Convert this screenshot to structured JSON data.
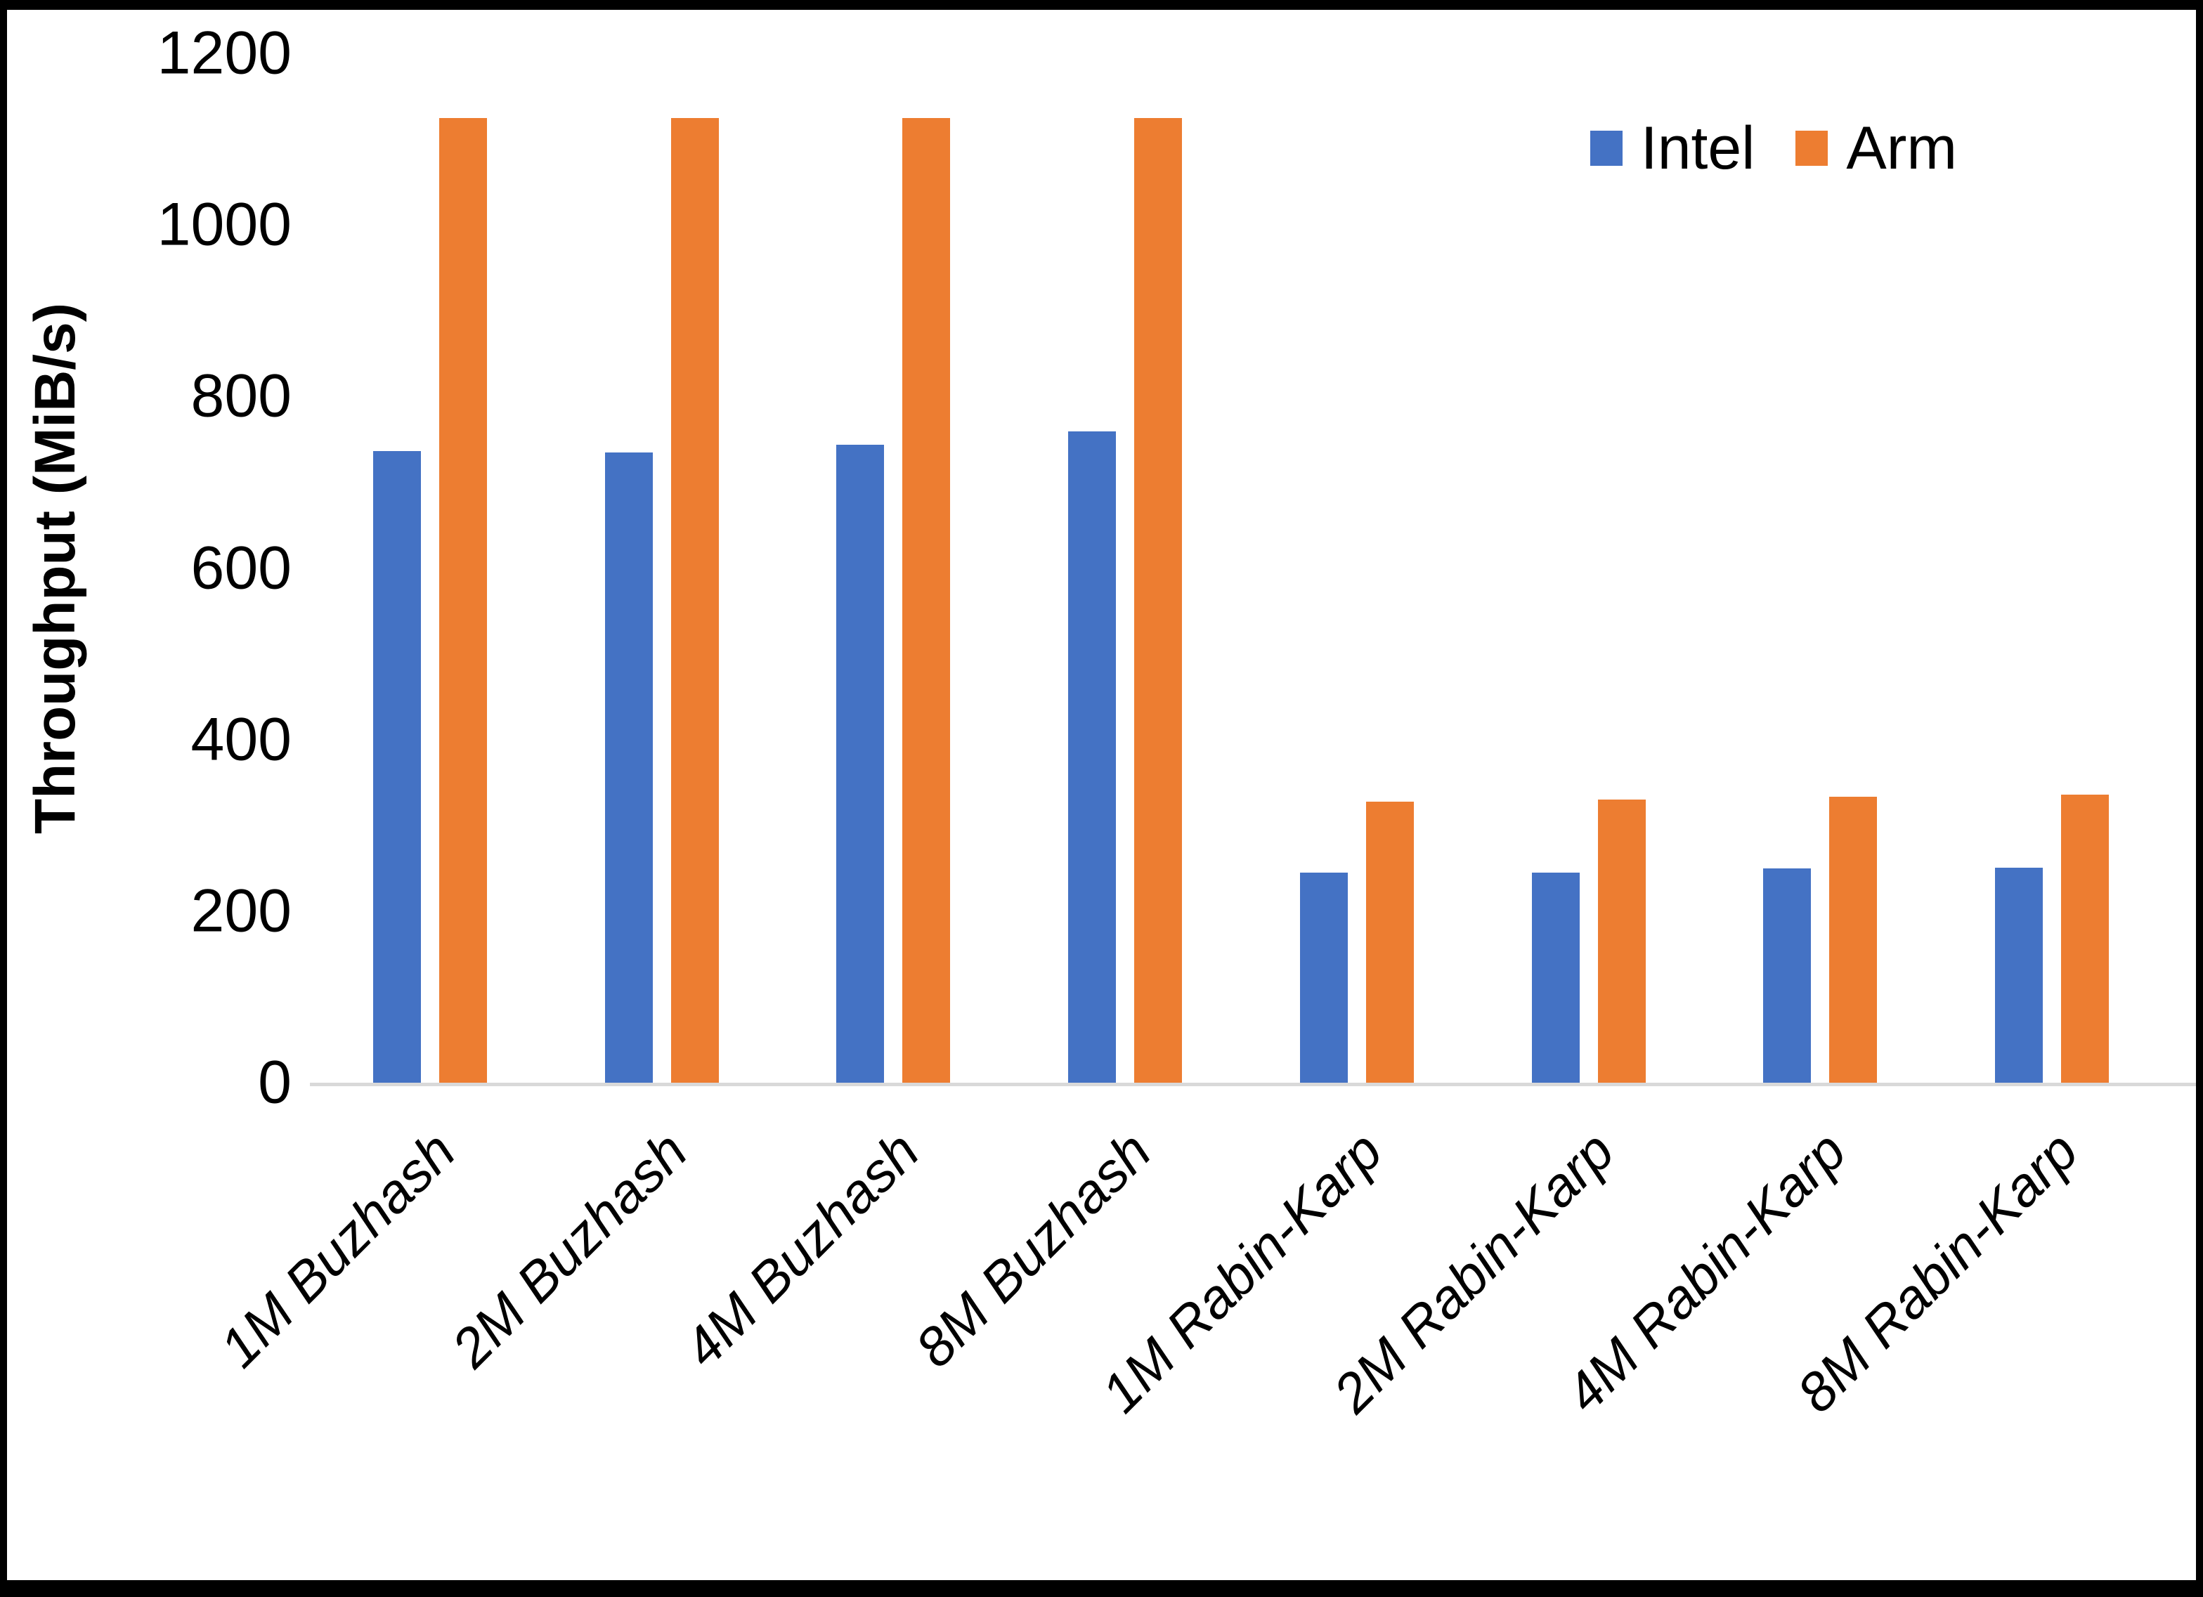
{
  "chart_data": {
    "type": "bar",
    "title": "",
    "categories": [
      "1M Buzhash",
      "2M Buzhash",
      "4M Buzhash",
      "8M Buzhash",
      "1M Rabin-Karp",
      "2M Rabin-Karp",
      "4M Rabin-Karp",
      "8M Rabin-Karp"
    ],
    "series": [
      {
        "name": "Intel",
        "color": "#4472C4",
        "values": [
          736,
          735,
          744,
          759,
          245,
          245,
          250,
          251
        ]
      },
      {
        "name": "Arm",
        "color": "#ED7D31",
        "values": [
          1125,
          1125,
          1125,
          1125,
          328,
          330,
          333,
          336
        ]
      }
    ],
    "xlabel": "",
    "ylabel": "Throughput (MiB/s)",
    "ylim": [
      0,
      1200
    ],
    "yticks": [
      0,
      200,
      400,
      600,
      800,
      1000,
      1200
    ],
    "grid": false,
    "legend_position": "top-right",
    "colors": {
      "axis_line": "#d9d9d9",
      "text": "#000000",
      "background": "#ffffff",
      "frame_border": "#000000"
    }
  }
}
